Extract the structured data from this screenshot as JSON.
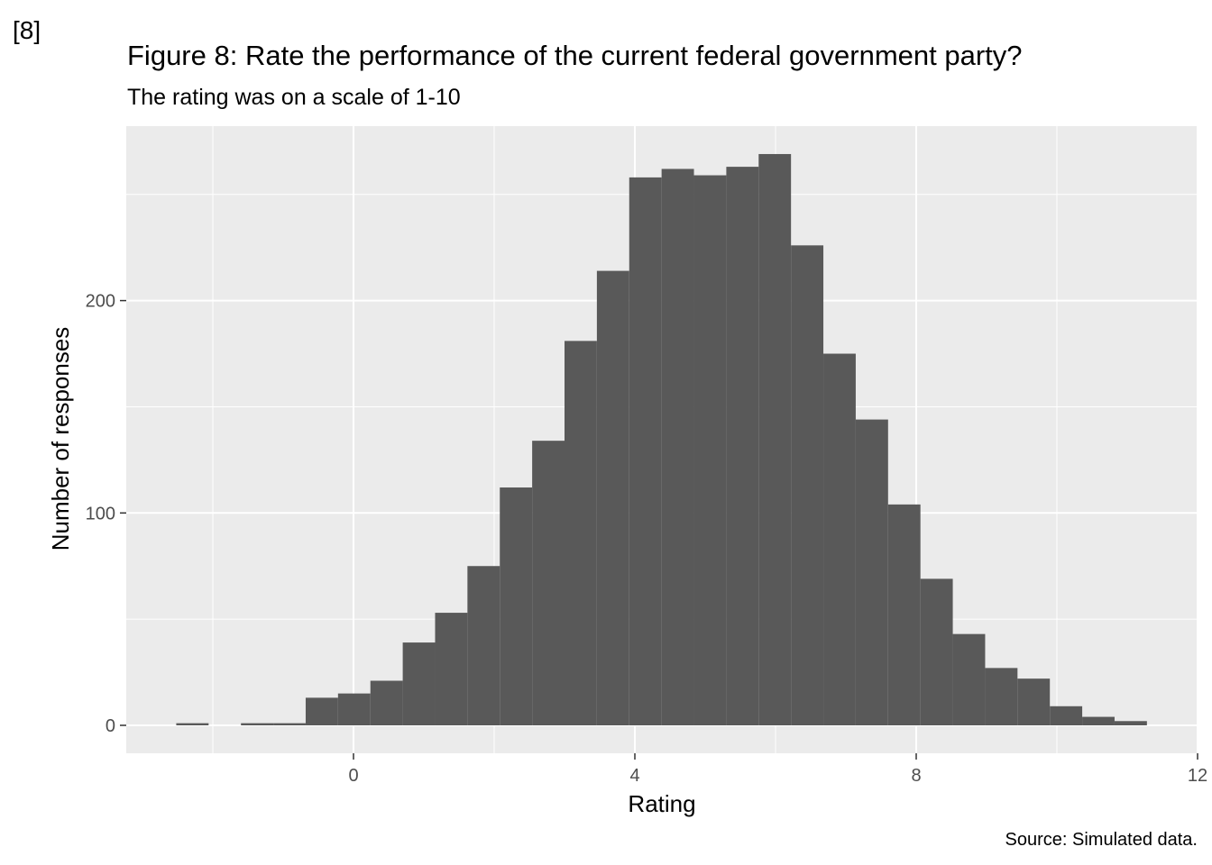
{
  "figure_tag": "[8]",
  "caption": "Source: Simulated data.",
  "colors": {
    "panel_background": "#ebebeb",
    "grid_major": "#ffffff",
    "bar_fill": "#595959",
    "tick_text": "#4d4d4d"
  },
  "chart_data": {
    "type": "bar",
    "subtype": "histogram",
    "title": "Figure 8: Rate the performance of the current federal government party?",
    "subtitle": "The rating was on a scale of 1-10",
    "xlabel": "Rating",
    "ylabel": "Number of responses",
    "xlim": [
      -3.2,
      12
    ],
    "ylim": [
      -13,
      283
    ],
    "x_ticks": [
      0,
      4,
      8,
      12
    ],
    "y_ticks": [
      0,
      100,
      200
    ],
    "grid": true,
    "bin_width": 0.46,
    "bins": [
      {
        "x0": -2.52,
        "x1": -2.06,
        "count": 1
      },
      {
        "x0": -2.06,
        "x1": -1.6,
        "count": 0
      },
      {
        "x0": -1.6,
        "x1": -1.14,
        "count": 1
      },
      {
        "x0": -1.14,
        "x1": -0.68,
        "count": 1
      },
      {
        "x0": -0.68,
        "x1": -0.22,
        "count": 13
      },
      {
        "x0": -0.22,
        "x1": 0.24,
        "count": 15
      },
      {
        "x0": 0.24,
        "x1": 0.7,
        "count": 21
      },
      {
        "x0": 0.7,
        "x1": 1.16,
        "count": 39
      },
      {
        "x0": 1.16,
        "x1": 1.62,
        "count": 53
      },
      {
        "x0": 1.62,
        "x1": 2.08,
        "count": 75
      },
      {
        "x0": 2.08,
        "x1": 2.54,
        "count": 112
      },
      {
        "x0": 2.54,
        "x1": 3.0,
        "count": 134
      },
      {
        "x0": 3.0,
        "x1": 3.46,
        "count": 181
      },
      {
        "x0": 3.46,
        "x1": 3.92,
        "count": 214
      },
      {
        "x0": 3.92,
        "x1": 4.38,
        "count": 258
      },
      {
        "x0": 4.38,
        "x1": 4.84,
        "count": 262
      },
      {
        "x0": 4.84,
        "x1": 5.3,
        "count": 259
      },
      {
        "x0": 5.3,
        "x1": 5.76,
        "count": 263
      },
      {
        "x0": 5.76,
        "x1": 6.22,
        "count": 269
      },
      {
        "x0": 6.22,
        "x1": 6.68,
        "count": 226
      },
      {
        "x0": 6.68,
        "x1": 7.14,
        "count": 175
      },
      {
        "x0": 7.14,
        "x1": 7.6,
        "count": 144
      },
      {
        "x0": 7.6,
        "x1": 8.06,
        "count": 104
      },
      {
        "x0": 8.06,
        "x1": 8.52,
        "count": 69
      },
      {
        "x0": 8.52,
        "x1": 8.98,
        "count": 43
      },
      {
        "x0": 8.98,
        "x1": 9.44,
        "count": 27
      },
      {
        "x0": 9.44,
        "x1": 9.9,
        "count": 22
      },
      {
        "x0": 9.9,
        "x1": 10.36,
        "count": 9
      },
      {
        "x0": 10.36,
        "x1": 10.82,
        "count": 4
      },
      {
        "x0": 10.82,
        "x1": 11.28,
        "count": 2
      }
    ]
  }
}
